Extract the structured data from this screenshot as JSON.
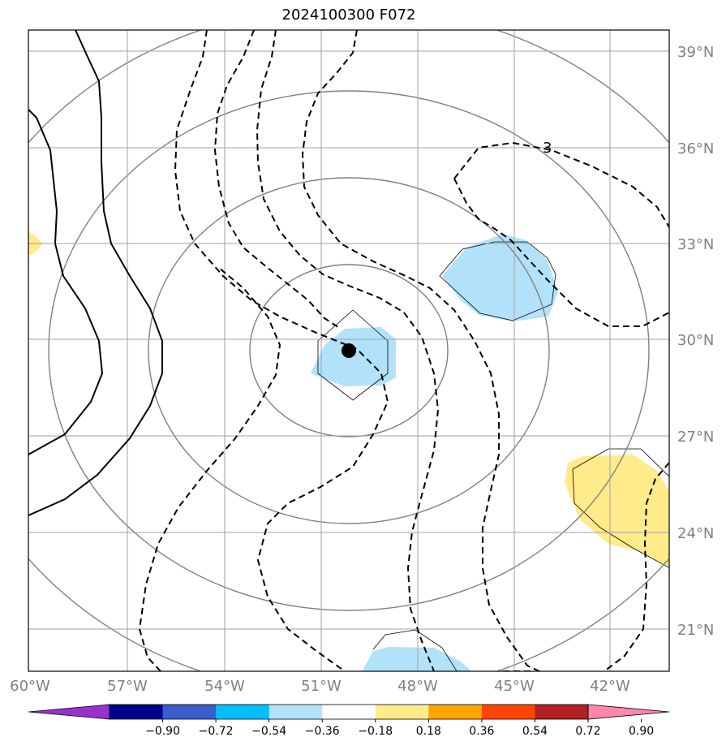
{
  "title": "2024100300 F072",
  "map": {
    "lat_ticks": [
      "39°N",
      "36°N",
      "33°N",
      "30°N",
      "27°N",
      "24°N",
      "21°N"
    ],
    "lon_ticks": [
      "60°W",
      "57°W",
      "54°W",
      "51°W",
      "48°W",
      "45°W",
      "42°W"
    ],
    "contour_label": "3",
    "center_marker": "storm-center"
  },
  "colorbar": {
    "ticks": [
      "−0.90",
      "−0.72",
      "−0.54",
      "−0.36",
      "−0.18",
      "0.18",
      "0.36",
      "0.54",
      "0.72",
      "0.90"
    ],
    "colors": [
      "#9932cc",
      "#00008b",
      "#3a5fcd",
      "#00bfff",
      "#b2e2fa",
      "#ffffff",
      "#ffeb8a",
      "#ffa500",
      "#ff4500",
      "#b22222",
      "#ff88aa"
    ]
  }
}
